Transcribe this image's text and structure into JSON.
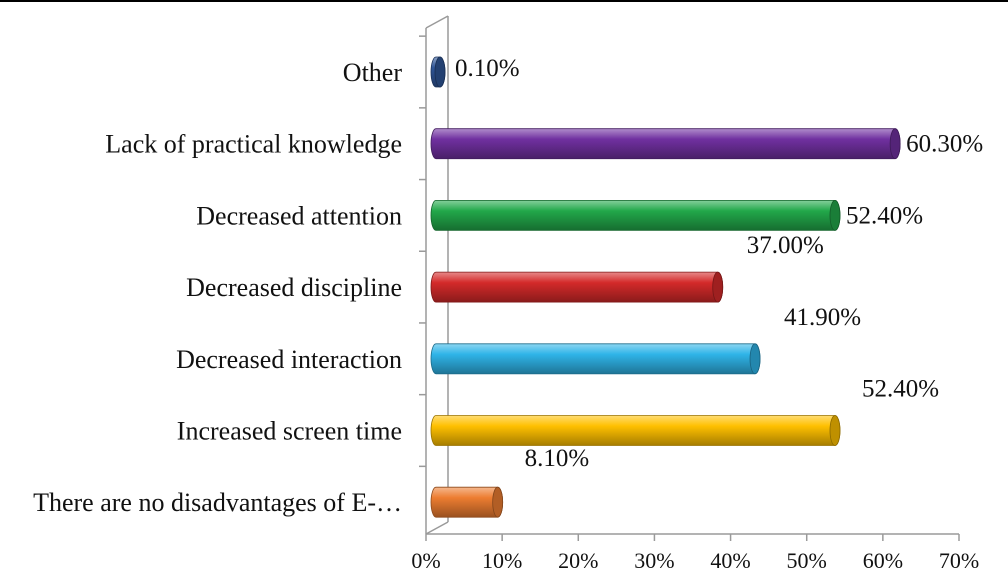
{
  "chart_data": {
    "type": "bar",
    "orientation": "horizontal",
    "title": "",
    "xlabel": "",
    "ylabel": "",
    "categories": [
      "Other",
      "Lack of practical knowledge",
      "Decreased attention",
      "Decreased discipline",
      "Decreased interaction",
      "Increased screen time",
      "There are no disadvantages of E-…"
    ],
    "values": [
      0.1,
      60.3,
      52.4,
      37.0,
      41.9,
      52.4,
      8.1
    ],
    "value_labels": [
      "0.10%",
      "60.30%",
      "52.40%",
      "37.00%",
      "41.90%",
      "52.40%",
      "8.10%"
    ],
    "bar_colors": [
      "#2F5597",
      "#7030A0",
      "#22A84A",
      "#D42A2A",
      "#2FB4E8",
      "#FFC000",
      "#ED7D31"
    ],
    "xlim": [
      0,
      70
    ],
    "xticks": [
      0,
      10,
      20,
      30,
      40,
      50,
      60,
      70
    ],
    "xtick_labels": [
      "0%",
      "10%",
      "20%",
      "30%",
      "40%",
      "50%",
      "60%",
      "70%"
    ],
    "grid": false,
    "legend": "none",
    "style": "3d-cylinder"
  }
}
